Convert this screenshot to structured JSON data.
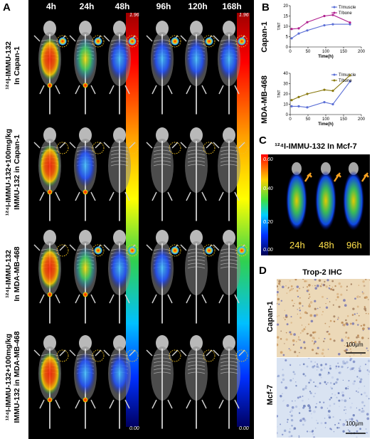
{
  "panels": {
    "a": "A",
    "b": "B",
    "c": "C",
    "d": "D"
  },
  "panelA": {
    "timepoints": [
      "4h",
      "24h",
      "48h",
      "96h",
      "120h",
      "168h"
    ],
    "rows": [
      {
        "line1": "¹²⁴I-IMMU-132",
        "line2": "In Capan-1"
      },
      {
        "line1": "¹²⁴I-IMMU-132+100mg/kg",
        "line2": "IMMU-132 in Capan-1"
      },
      {
        "line1": "¹²⁴I-IMMU-132",
        "line2": "In MDA-MB-468"
      },
      {
        "line1": "¹²⁴I-IMMU-132+100mg/kg",
        "line2": "IMMU-132 in MDA-MB-468"
      }
    ],
    "colorbar1": {
      "max": "1.96",
      "min": "0.00"
    },
    "colorbar2": {
      "max": "1.96",
      "min": "0.00"
    }
  },
  "panelC": {
    "title": "¹²⁴I-IMMU-132 In Mcf-7",
    "timepoints": [
      "24h",
      "48h",
      "96h"
    ],
    "colorbar": {
      "max": "0.60",
      "mid1": "0.40",
      "mid2": "0.20",
      "min": "0.00"
    }
  },
  "panelD": {
    "title": "Trop-2 IHC",
    "row1": "Capan-1",
    "row2": "Mcf-7",
    "scale1": "100μm",
    "scale2": "100μm"
  },
  "chart_data": [
    {
      "type": "line",
      "title": "",
      "side_label": "Capan-1",
      "xlabel": "Time(h)",
      "ylabel": "T/NT",
      "xlim": [
        0,
        200
      ],
      "ylim": [
        0,
        20
      ],
      "xticks": [
        0,
        50,
        100,
        150,
        200
      ],
      "yticks": [
        0,
        5,
        10,
        15,
        20
      ],
      "series": [
        {
          "name": "T/muscle",
          "color": "#5b6fd6",
          "x": [
            4,
            24,
            48,
            96,
            120,
            168
          ],
          "y": [
            4.2,
            6.5,
            8.0,
            10.5,
            11.0,
            11.0
          ]
        },
        {
          "name": "T/bone",
          "color": "#b0208f",
          "x": [
            4,
            24,
            48,
            96,
            120,
            168
          ],
          "y": [
            8.7,
            9.0,
            12.0,
            15.0,
            15.5,
            11.8
          ]
        }
      ],
      "legend_position": "top-right"
    },
    {
      "type": "line",
      "title": "",
      "side_label": "MDA-MB-468",
      "xlabel": "Time(h)",
      "ylabel": "T/NT",
      "xlim": [
        0,
        200
      ],
      "ylim": [
        0,
        40
      ],
      "xticks": [
        0,
        50,
        100,
        150,
        200
      ],
      "yticks": [
        0,
        10,
        20,
        30,
        40
      ],
      "series": [
        {
          "name": "T/muscle",
          "color": "#5b6fd6",
          "x": [
            4,
            24,
            48,
            96,
            120,
            168
          ],
          "y": [
            8,
            8,
            7,
            12,
            10,
            32
          ]
        },
        {
          "name": "T/bone",
          "color": "#8a7a10",
          "x": [
            4,
            24,
            48,
            96,
            120,
            168
          ],
          "y": [
            14,
            17,
            20,
            24,
            23,
            38
          ]
        }
      ],
      "legend_position": "top-right"
    }
  ]
}
